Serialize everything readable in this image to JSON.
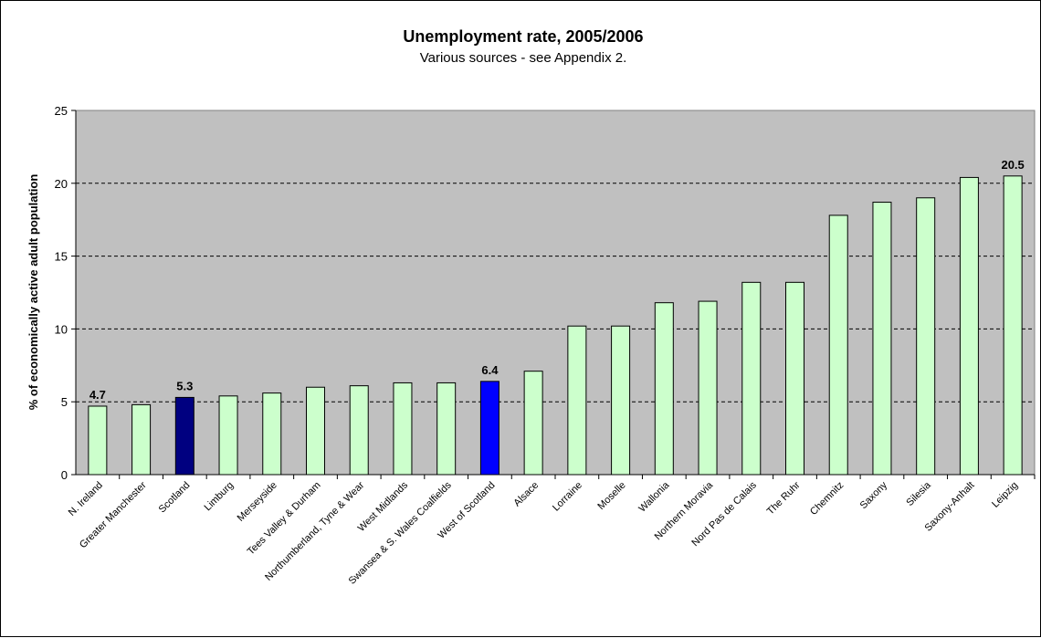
{
  "chart_data": {
    "type": "bar",
    "title": "Unemployment rate, 2005/2006",
    "subtitle": "Various sources - see Appendix 2.",
    "ylabel": "% of economically active adult population",
    "xlabel": "",
    "ylim": [
      0,
      25
    ],
    "yticks": [
      0,
      5,
      10,
      15,
      20,
      25
    ],
    "grid": true,
    "categories": [
      "N. Ireland",
      "Greater Manchester",
      "Scotland",
      "Limburg",
      "Merseyside",
      "Tees Valley & Durham",
      "Northumberland, Tyne & Wear",
      "West Midlands",
      "Swansea & S. Wales Coalfields",
      "West of Scotland",
      "Alsace",
      "Lorraine",
      "Moselle",
      "Wallonia",
      "Northern Moravia",
      "Nord Pas de Calais",
      "The Ruhr",
      "Chemnitz",
      "Saxony",
      "Silesia",
      "Saxony-Anhalt",
      "Leipzig"
    ],
    "values": [
      4.7,
      4.8,
      5.3,
      5.4,
      5.6,
      6.0,
      6.1,
      6.3,
      6.3,
      6.4,
      7.1,
      10.2,
      10.2,
      11.8,
      11.9,
      13.2,
      13.2,
      17.8,
      18.7,
      19.0,
      20.4,
      20.5
    ],
    "data_labels": {
      "N. Ireland": "4.7",
      "Scotland": "5.3",
      "West of Scotland": "6.4",
      "Leipzig": "20.5"
    },
    "colors": {
      "plot_background": "#c0c0c0",
      "default_bar": "#ccffcc",
      "bar_stroke": "#000000",
      "highlight": {
        "Scotland": "#000080",
        "West of Scotland": "#0000ff"
      }
    }
  }
}
